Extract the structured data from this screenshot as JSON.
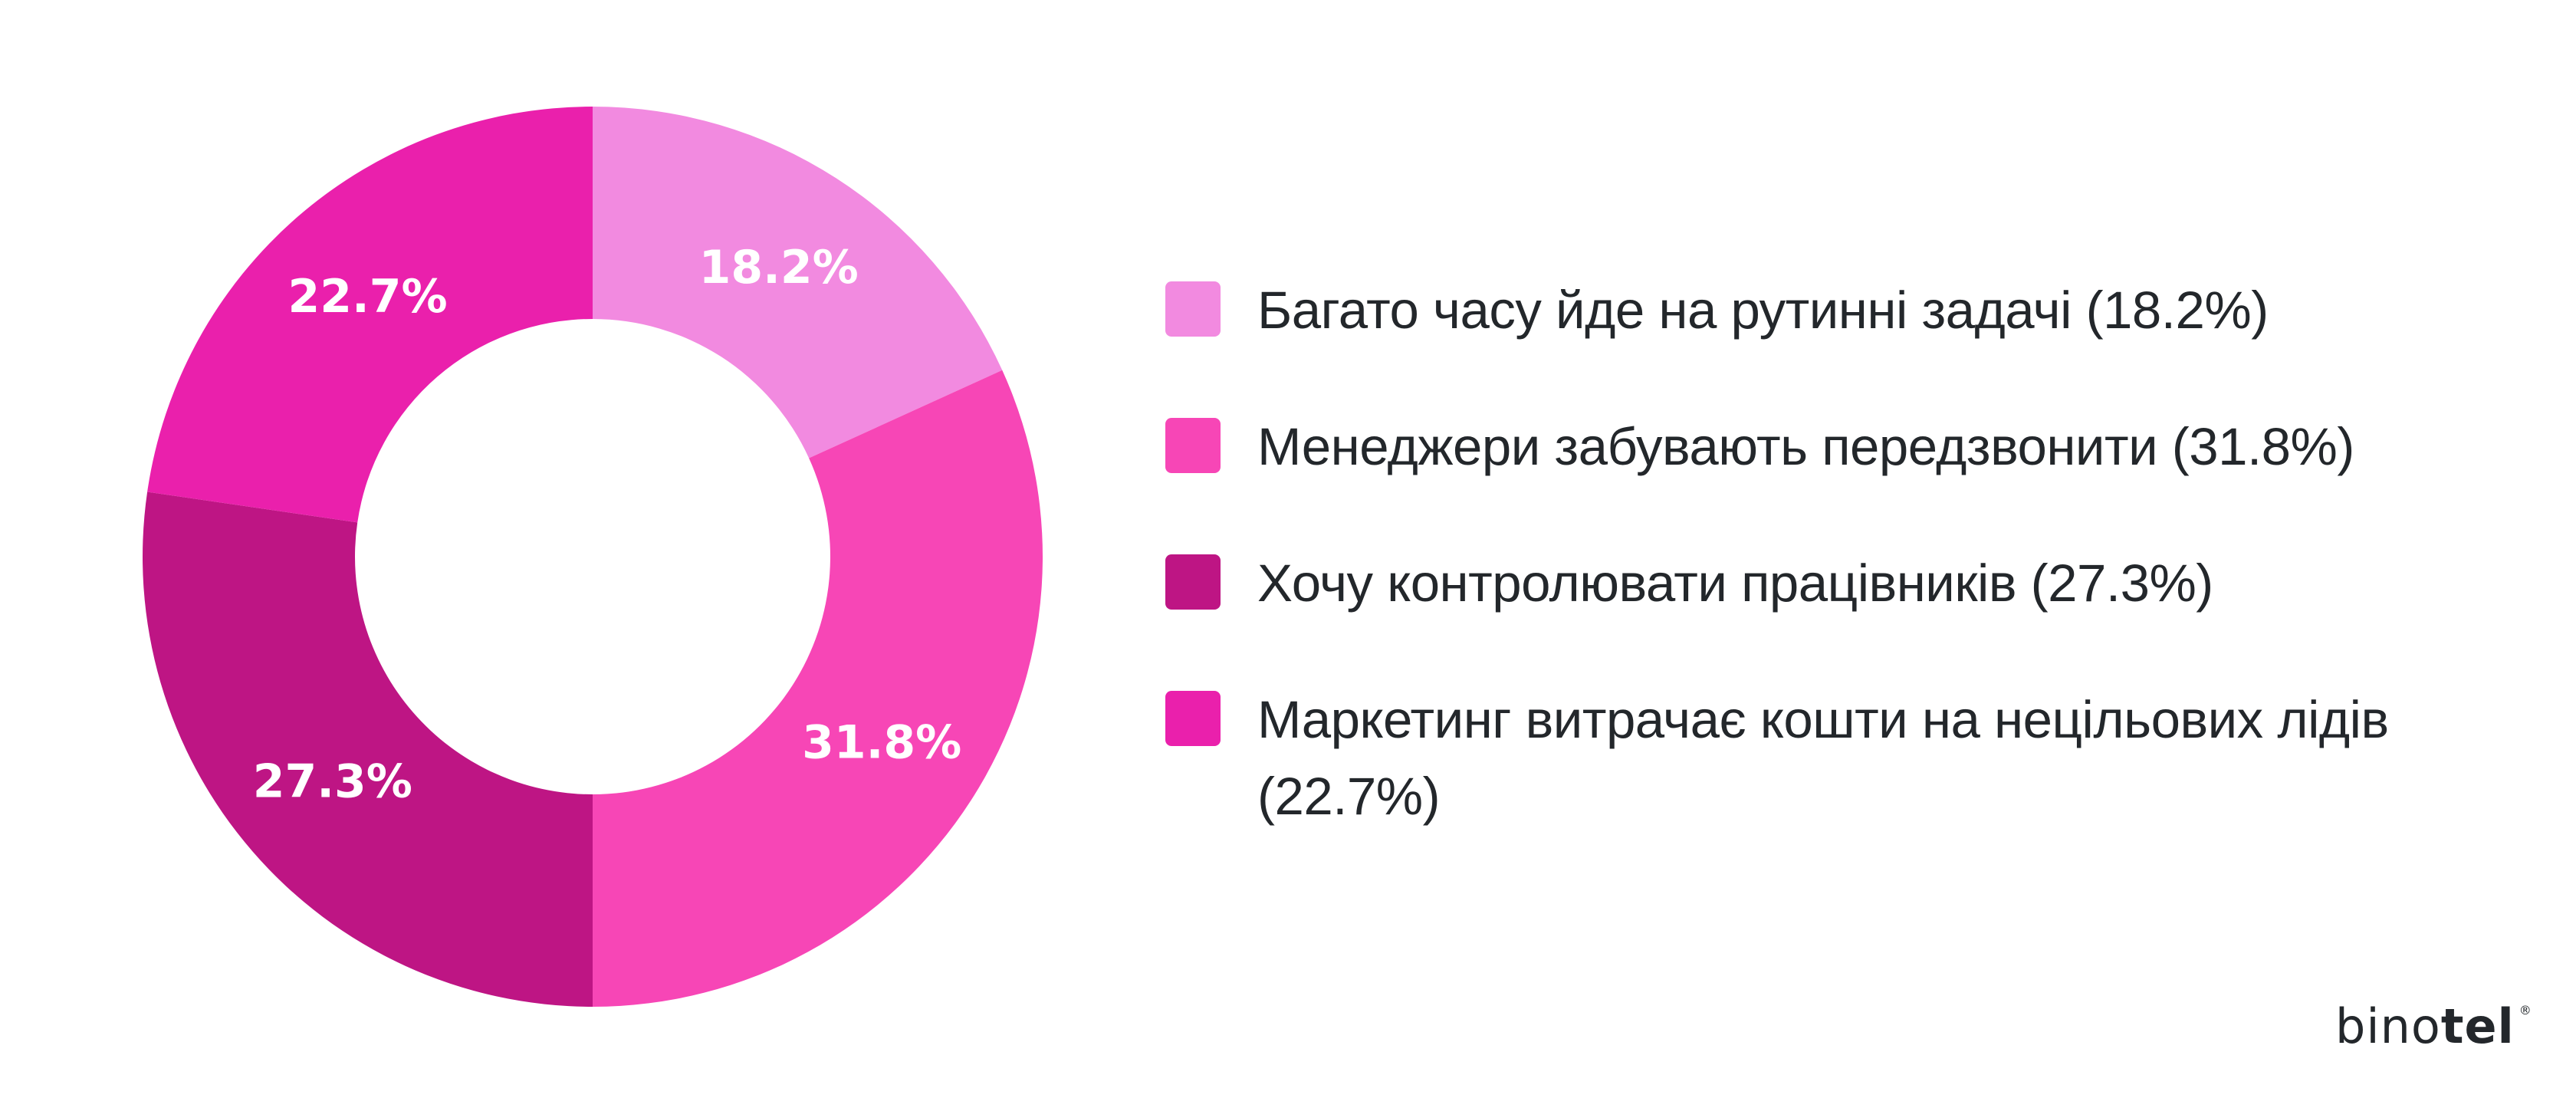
{
  "chart_data": {
    "type": "pie",
    "variant": "donut",
    "title": "",
    "categories": [
      "Багато часу йде на рутинні задачі",
      "Менеджери забувають передзвонити",
      "Хочу контролювати працівників",
      "Маркетинг витрачає кошти на нецільових лідів"
    ],
    "values": [
      18.2,
      31.8,
      27.3,
      22.7
    ],
    "value_labels": [
      "18.2%",
      "31.8%",
      "27.3%",
      "22.7%"
    ],
    "colors": [
      "#F28AE0",
      "#F746B6",
      "#BE1584",
      "#EA20AC"
    ],
    "legend_position": "right",
    "start_angle_deg": 0,
    "direction": "clockwise"
  },
  "legend": {
    "items": [
      {
        "label": "Багато часу йде на рутинні задачі (18.2%)",
        "color": "#F28AE0"
      },
      {
        "label": "Менеджери забувають передзвонити (31.8%)",
        "color": "#F746B6"
      },
      {
        "label": "Хочу контролювати працівників (27.3%)",
        "color": "#BE1584"
      },
      {
        "label": "Маркетинг витрачає кошти на нецільових лідів (22.7%)",
        "color": "#EA20AC"
      }
    ]
  },
  "logo": {
    "text_light": "bino",
    "text_bold": "tel",
    "mark": "®"
  }
}
